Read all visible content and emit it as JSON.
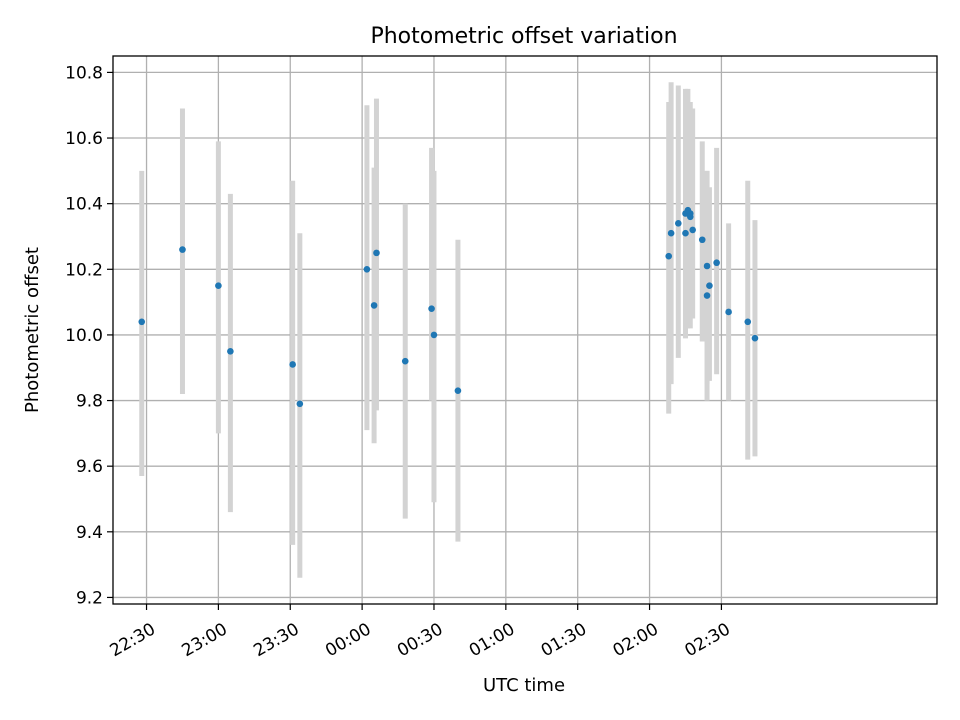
{
  "chart_data": {
    "type": "scatter",
    "title": "Photometric offset variation",
    "xlabel": "UTC time",
    "ylabel": "Photometric offset",
    "x_axis_type": "time",
    "xlim": [
      "22:16",
      "04:00"
    ],
    "ylim": [
      9.18,
      10.85
    ],
    "grid": true,
    "x_ticks": [
      {
        "time": "22:30",
        "label": "22:30"
      },
      {
        "time": "23:00",
        "label": "23:00"
      },
      {
        "time": "23:30",
        "label": "23:30"
      },
      {
        "time": "00:00",
        "label": "00:00"
      },
      {
        "time": "00:30",
        "label": "00:30"
      },
      {
        "time": "01:00",
        "label": "01:00"
      },
      {
        "time": "01:30",
        "label": "01:30"
      },
      {
        "time": "02:00",
        "label": "02:00"
      },
      {
        "time": "02:30",
        "label": "02:30"
      }
    ],
    "y_ticks": [
      {
        "value": 9.2,
        "label": "9.2"
      },
      {
        "value": 9.4,
        "label": "9.4"
      },
      {
        "value": 9.6,
        "label": "9.6"
      },
      {
        "value": 9.8,
        "label": "9.8"
      },
      {
        "value": 10.0,
        "label": "10.0"
      },
      {
        "value": 10.2,
        "label": "10.2"
      },
      {
        "value": 10.4,
        "label": "10.4"
      },
      {
        "value": 10.6,
        "label": "10.6"
      },
      {
        "value": 10.8,
        "label": "10.8"
      }
    ],
    "colors": {
      "point": "#1f77b4",
      "errorbar": "#d3d3d3",
      "grid": "#b0b0b0",
      "axes": "#000000"
    },
    "points": [
      {
        "time": "22:28",
        "y": 10.04,
        "yerr_low": 9.57,
        "yerr_high": 10.5
      },
      {
        "time": "22:45",
        "y": 10.26,
        "yerr_low": 9.82,
        "yerr_high": 10.69
      },
      {
        "time": "23:00",
        "y": 10.15,
        "yerr_low": 9.7,
        "yerr_high": 10.59
      },
      {
        "time": "23:05",
        "y": 9.95,
        "yerr_low": 9.46,
        "yerr_high": 10.43
      },
      {
        "time": "23:31",
        "y": 9.91,
        "yerr_low": 9.36,
        "yerr_high": 10.47
      },
      {
        "time": "23:34",
        "y": 9.79,
        "yerr_low": 9.26,
        "yerr_high": 10.31
      },
      {
        "time": "00:02",
        "y": 10.2,
        "yerr_low": 9.71,
        "yerr_high": 10.7
      },
      {
        "time": "00:05",
        "y": 10.09,
        "yerr_low": 9.67,
        "yerr_high": 10.51
      },
      {
        "time": "00:06",
        "y": 10.25,
        "yerr_low": 9.77,
        "yerr_high": 10.72
      },
      {
        "time": "00:18",
        "y": 9.92,
        "yerr_low": 9.44,
        "yerr_high": 10.4
      },
      {
        "time": "00:29",
        "y": 10.08,
        "yerr_low": 9.8,
        "yerr_high": 10.57
      },
      {
        "time": "00:30",
        "y": 10.0,
        "yerr_low": 9.49,
        "yerr_high": 10.5
      },
      {
        "time": "00:40",
        "y": 9.83,
        "yerr_low": 9.37,
        "yerr_high": 10.29
      },
      {
        "time": "02:08",
        "y": 10.24,
        "yerr_low": 9.76,
        "yerr_high": 10.71
      },
      {
        "time": "02:09",
        "y": 10.31,
        "yerr_low": 9.85,
        "yerr_high": 10.77
      },
      {
        "time": "02:12",
        "y": 10.34,
        "yerr_low": 9.93,
        "yerr_high": 10.76
      },
      {
        "time": "02:15",
        "y": 10.37,
        "yerr_low": 9.99,
        "yerr_high": 10.75
      },
      {
        "time": "02:15",
        "y": 10.31,
        "yerr_low": 9.99,
        "yerr_high": 10.73
      },
      {
        "time": "02:16",
        "y": 10.38,
        "yerr_low": 10.02,
        "yerr_high": 10.75
      },
      {
        "time": "02:17",
        "y": 10.36,
        "yerr_low": 10.02,
        "yerr_high": 10.71
      },
      {
        "time": "02:17",
        "y": 10.37,
        "yerr_low": 10.08,
        "yerr_high": 10.66
      },
      {
        "time": "02:18",
        "y": 10.32,
        "yerr_low": 10.05,
        "yerr_high": 10.69
      },
      {
        "time": "02:22",
        "y": 10.29,
        "yerr_low": 9.98,
        "yerr_high": 10.59
      },
      {
        "time": "02:24",
        "y": 10.12,
        "yerr_low": 9.8,
        "yerr_high": 10.5
      },
      {
        "time": "02:24",
        "y": 10.21,
        "yerr_low": 9.85,
        "yerr_high": 10.5
      },
      {
        "time": "02:25",
        "y": 10.15,
        "yerr_low": 9.86,
        "yerr_high": 10.45
      },
      {
        "time": "02:28",
        "y": 10.22,
        "yerr_low": 9.88,
        "yerr_high": 10.57
      },
      {
        "time": "02:33",
        "y": 10.07,
        "yerr_low": 9.8,
        "yerr_high": 10.34
      },
      {
        "time": "02:41",
        "y": 10.04,
        "yerr_low": 9.62,
        "yerr_high": 10.47
      },
      {
        "time": "02:44",
        "y": 9.99,
        "yerr_low": 9.63,
        "yerr_high": 10.35
      }
    ]
  }
}
